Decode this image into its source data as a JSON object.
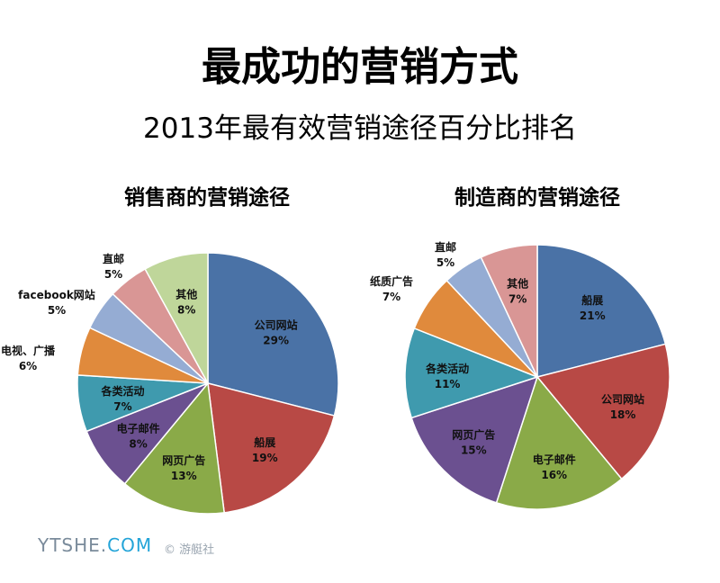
{
  "title": "最成功的营销方式",
  "subtitle": "2013年最有效营销途径百分比排名",
  "watermark": {
    "text": "YTSHE.",
    "accent": "COM",
    "credit": "© 游艇社"
  },
  "chart_data": [
    {
      "type": "pie",
      "title": "销售商的营销途径",
      "slices": [
        {
          "label": "公司网站",
          "value": 29,
          "color": "#4a72a6"
        },
        {
          "label": "船展",
          "value": 19,
          "color": "#b84945"
        },
        {
          "label": "网页广告",
          "value": 13,
          "color": "#8aaa48"
        },
        {
          "label": "电子邮件",
          "value": 8,
          "color": "#6b5090"
        },
        {
          "label": "各类活动",
          "value": 7,
          "color": "#3f9aae"
        },
        {
          "label": "电视、广播",
          "value": 6,
          "color": "#e08a3c"
        },
        {
          "label": "facebook网站",
          "value": 5,
          "color": "#95acd3"
        },
        {
          "label": "直邮",
          "value": 5,
          "color": "#d99695"
        },
        {
          "label": "其他",
          "value": 8,
          "color": "#bfd69a"
        }
      ]
    },
    {
      "type": "pie",
      "title": "制造商的营销途径",
      "slices": [
        {
          "label": "船展",
          "value": 21,
          "color": "#4a72a6"
        },
        {
          "label": "公司网站",
          "value": 18,
          "color": "#b84945"
        },
        {
          "label": "电子邮件",
          "value": 16,
          "color": "#8aaa48"
        },
        {
          "label": "网页广告",
          "value": 15,
          "color": "#6b5090"
        },
        {
          "label": "各类活动",
          "value": 11,
          "color": "#3f9aae"
        },
        {
          "label": "纸质广告",
          "value": 7,
          "color": "#e08a3c"
        },
        {
          "label": "直邮",
          "value": 5,
          "color": "#95acd3"
        },
        {
          "label": "其他",
          "value": 7,
          "color": "#d99695"
        }
      ]
    }
  ]
}
